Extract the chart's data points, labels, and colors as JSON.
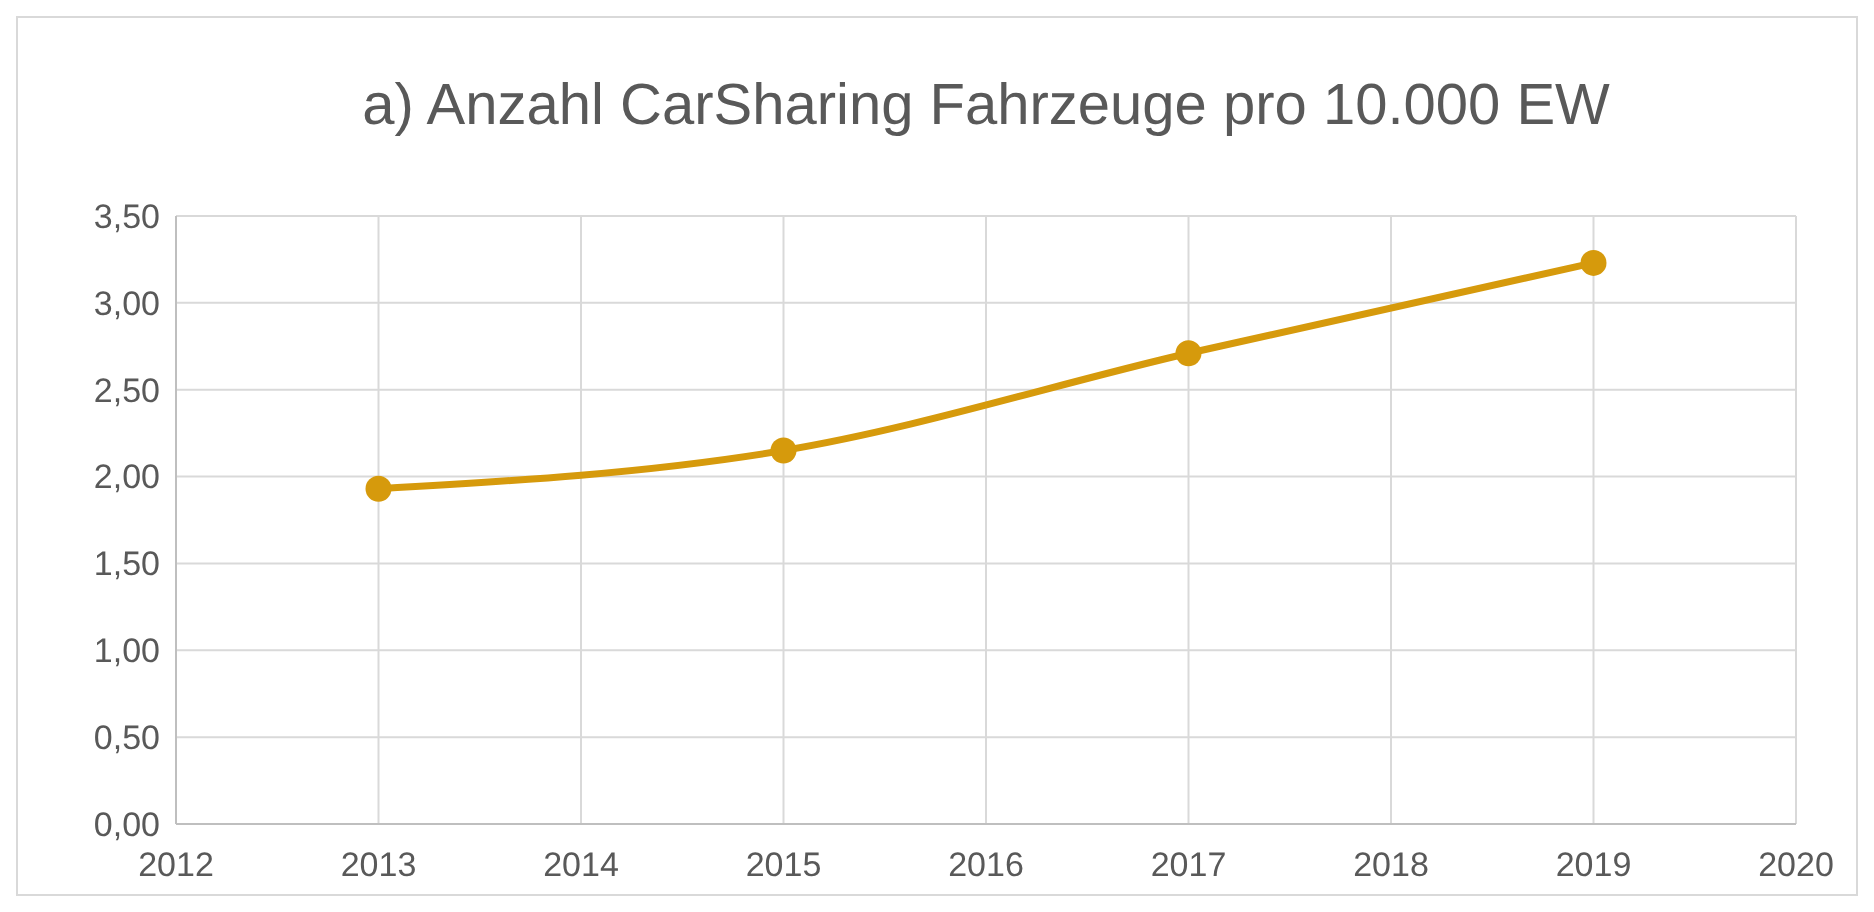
{
  "chart_data": {
    "type": "line",
    "title": "a) Anzahl CarSharing Fahrzeuge pro 10.000 EW",
    "x": [
      2013,
      2015,
      2017,
      2019
    ],
    "series": [
      {
        "color": "#d69a0c",
        "values": [
          1.93,
          2.15,
          2.71,
          3.23
        ]
      }
    ],
    "xlim": [
      2012,
      2020
    ],
    "xticks": [
      2012,
      2013,
      2014,
      2015,
      2016,
      2017,
      2018,
      2019,
      2020
    ],
    "ylim": [
      0,
      3.5
    ],
    "yticks": [
      {
        "value": 0,
        "label": "0,00"
      },
      {
        "value": 0.5,
        "label": "0,50"
      },
      {
        "value": 1,
        "label": "1,00"
      },
      {
        "value": 1.5,
        "label": "1,50"
      },
      {
        "value": 2,
        "label": "2,00"
      },
      {
        "value": 2.5,
        "label": "2,50"
      },
      {
        "value": 3,
        "label": "3,00"
      },
      {
        "value": 3.5,
        "label": "3,50"
      }
    ],
    "grid": true,
    "marker": "circle",
    "line_style": "solid"
  }
}
